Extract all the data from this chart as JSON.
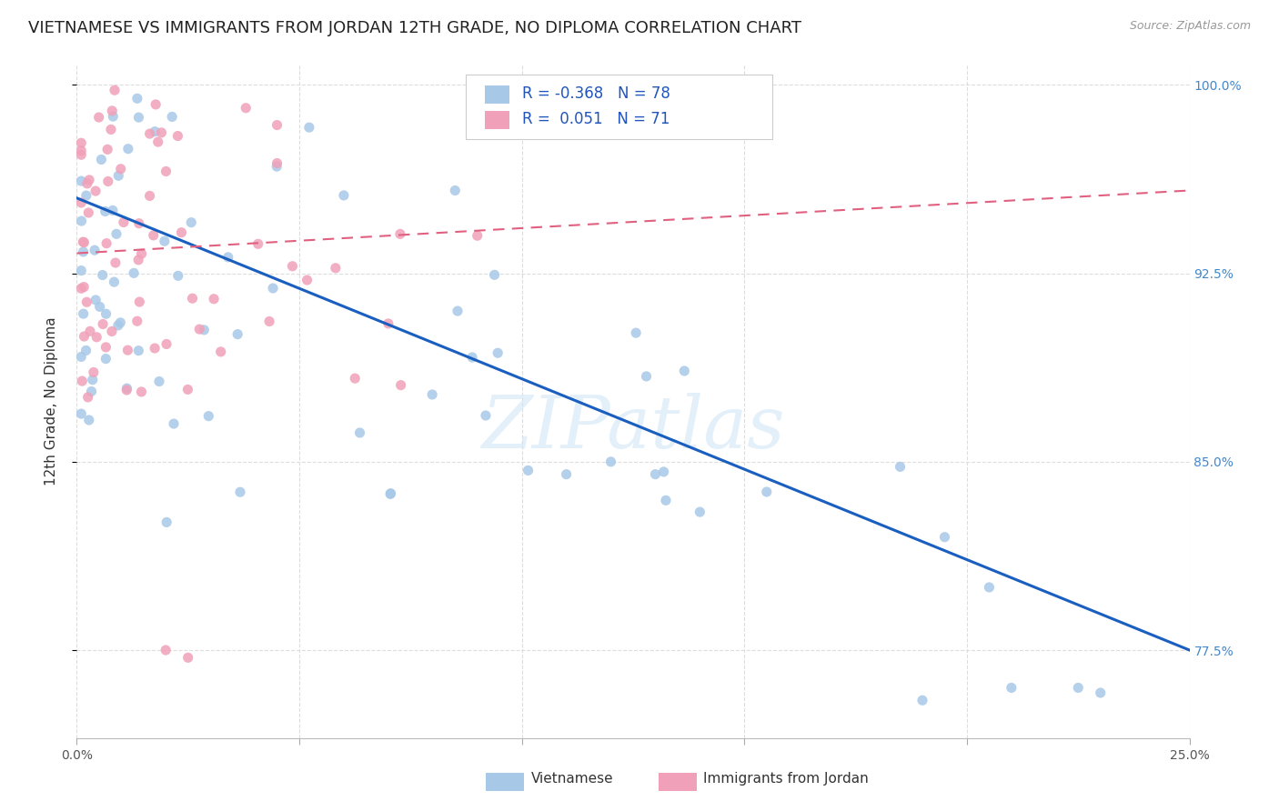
{
  "title": "VIETNAMESE VS IMMIGRANTS FROM JORDAN 12TH GRADE, NO DIPLOMA CORRELATION CHART",
  "source": "Source: ZipAtlas.com",
  "ylabel": "12th Grade, No Diploma",
  "watermark_zip": "ZIP",
  "watermark_atlas": "atlas",
  "legend_label_blue": "Vietnamese",
  "legend_label_pink": "Immigrants from Jordan",
  "R_blue": -0.368,
  "N_blue": 78,
  "R_pink": 0.051,
  "N_pink": 71,
  "x_min": 0.0,
  "x_max": 0.25,
  "y_min": 0.74,
  "y_max": 1.008,
  "y_ticks": [
    0.775,
    0.85,
    0.925,
    1.0
  ],
  "y_tick_labels": [
    "77.5%",
    "85.0%",
    "92.5%",
    "100.0%"
  ],
  "blue_color": "#a8c8e8",
  "pink_color": "#f0a0b8",
  "blue_line_color": "#1a5fbf",
  "pink_line_color": "#e06080",
  "background_color": "#ffffff",
  "grid_color": "#dddddd",
  "title_fontsize": 13,
  "axis_label_fontsize": 11,
  "tick_fontsize": 10,
  "blue_line_y0": 0.955,
  "blue_line_y1": 0.775,
  "pink_line_y0": 0.933,
  "pink_line_y1": 0.958
}
